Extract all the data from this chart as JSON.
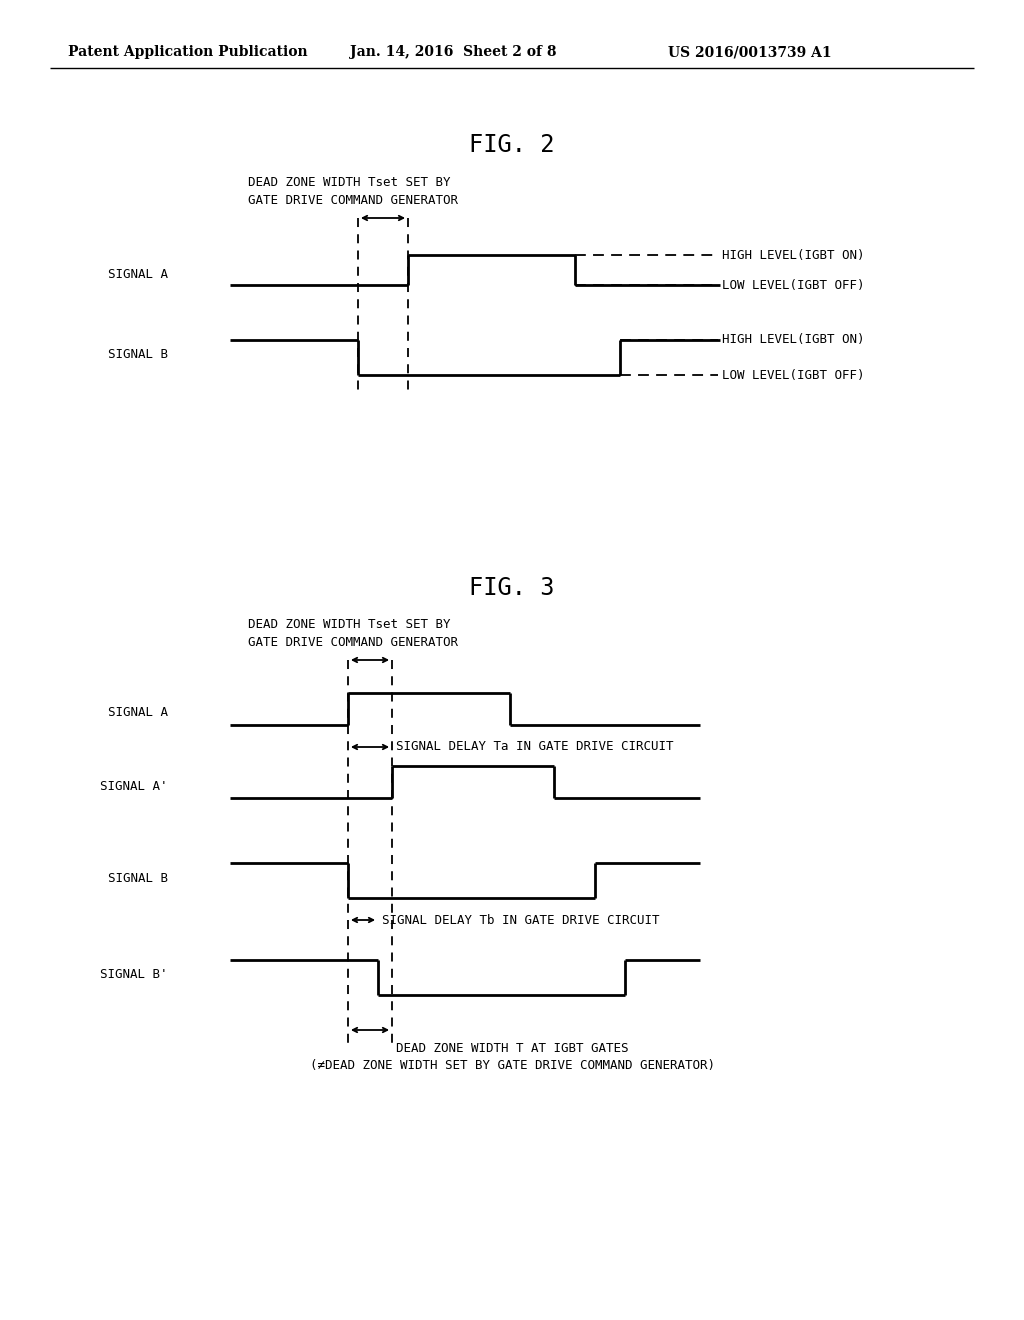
{
  "bg_color": "#ffffff",
  "text_color": "#000000",
  "header_left": "Patent Application Publication",
  "header_mid": "Jan. 14, 2016  Sheet 2 of 8",
  "header_right": "US 2016/0013739 A1",
  "fig2_title": "FIG. 2",
  "fig2_label1": "DEAD ZONE WIDTH Tset SET BY",
  "fig2_label2": "GATE DRIVE COMMAND GENERATOR",
  "fig2_sigA_label": "SIGNAL A",
  "fig2_sigB_label": "SIGNAL B",
  "fig2_high_A": "HIGH LEVEL(IGBT ON)",
  "fig2_low_A": "LOW LEVEL(IGBT OFF)",
  "fig2_high_B": "HIGH LEVEL(IGBT ON)",
  "fig2_low_B": "LOW LEVEL(IGBT OFF)",
  "fig3_title": "FIG. 3",
  "fig3_label1": "DEAD ZONE WIDTH Tset SET BY",
  "fig3_label2": "GATE DRIVE COMMAND GENERATOR",
  "fig3_sigA_label": "SIGNAL A",
  "fig3_sigAp_label": "SIGNAL A'",
  "fig3_sigB_label": "SIGNAL B",
  "fig3_sigBp_label": "SIGNAL B'",
  "fig3_delay_Ta": "SIGNAL DELAY Ta IN GATE DRIVE CIRCUIT",
  "fig3_delay_Tb": "SIGNAL DELAY Tb IN GATE DRIVE CIRCUIT",
  "fig3_bottom_label1": "DEAD ZONE WIDTH T AT IGBT GATES",
  "fig3_bottom_label2": "(≠DEAD ZONE WIDTH SET BY GATE DRIVE COMMAND GENERATOR)"
}
